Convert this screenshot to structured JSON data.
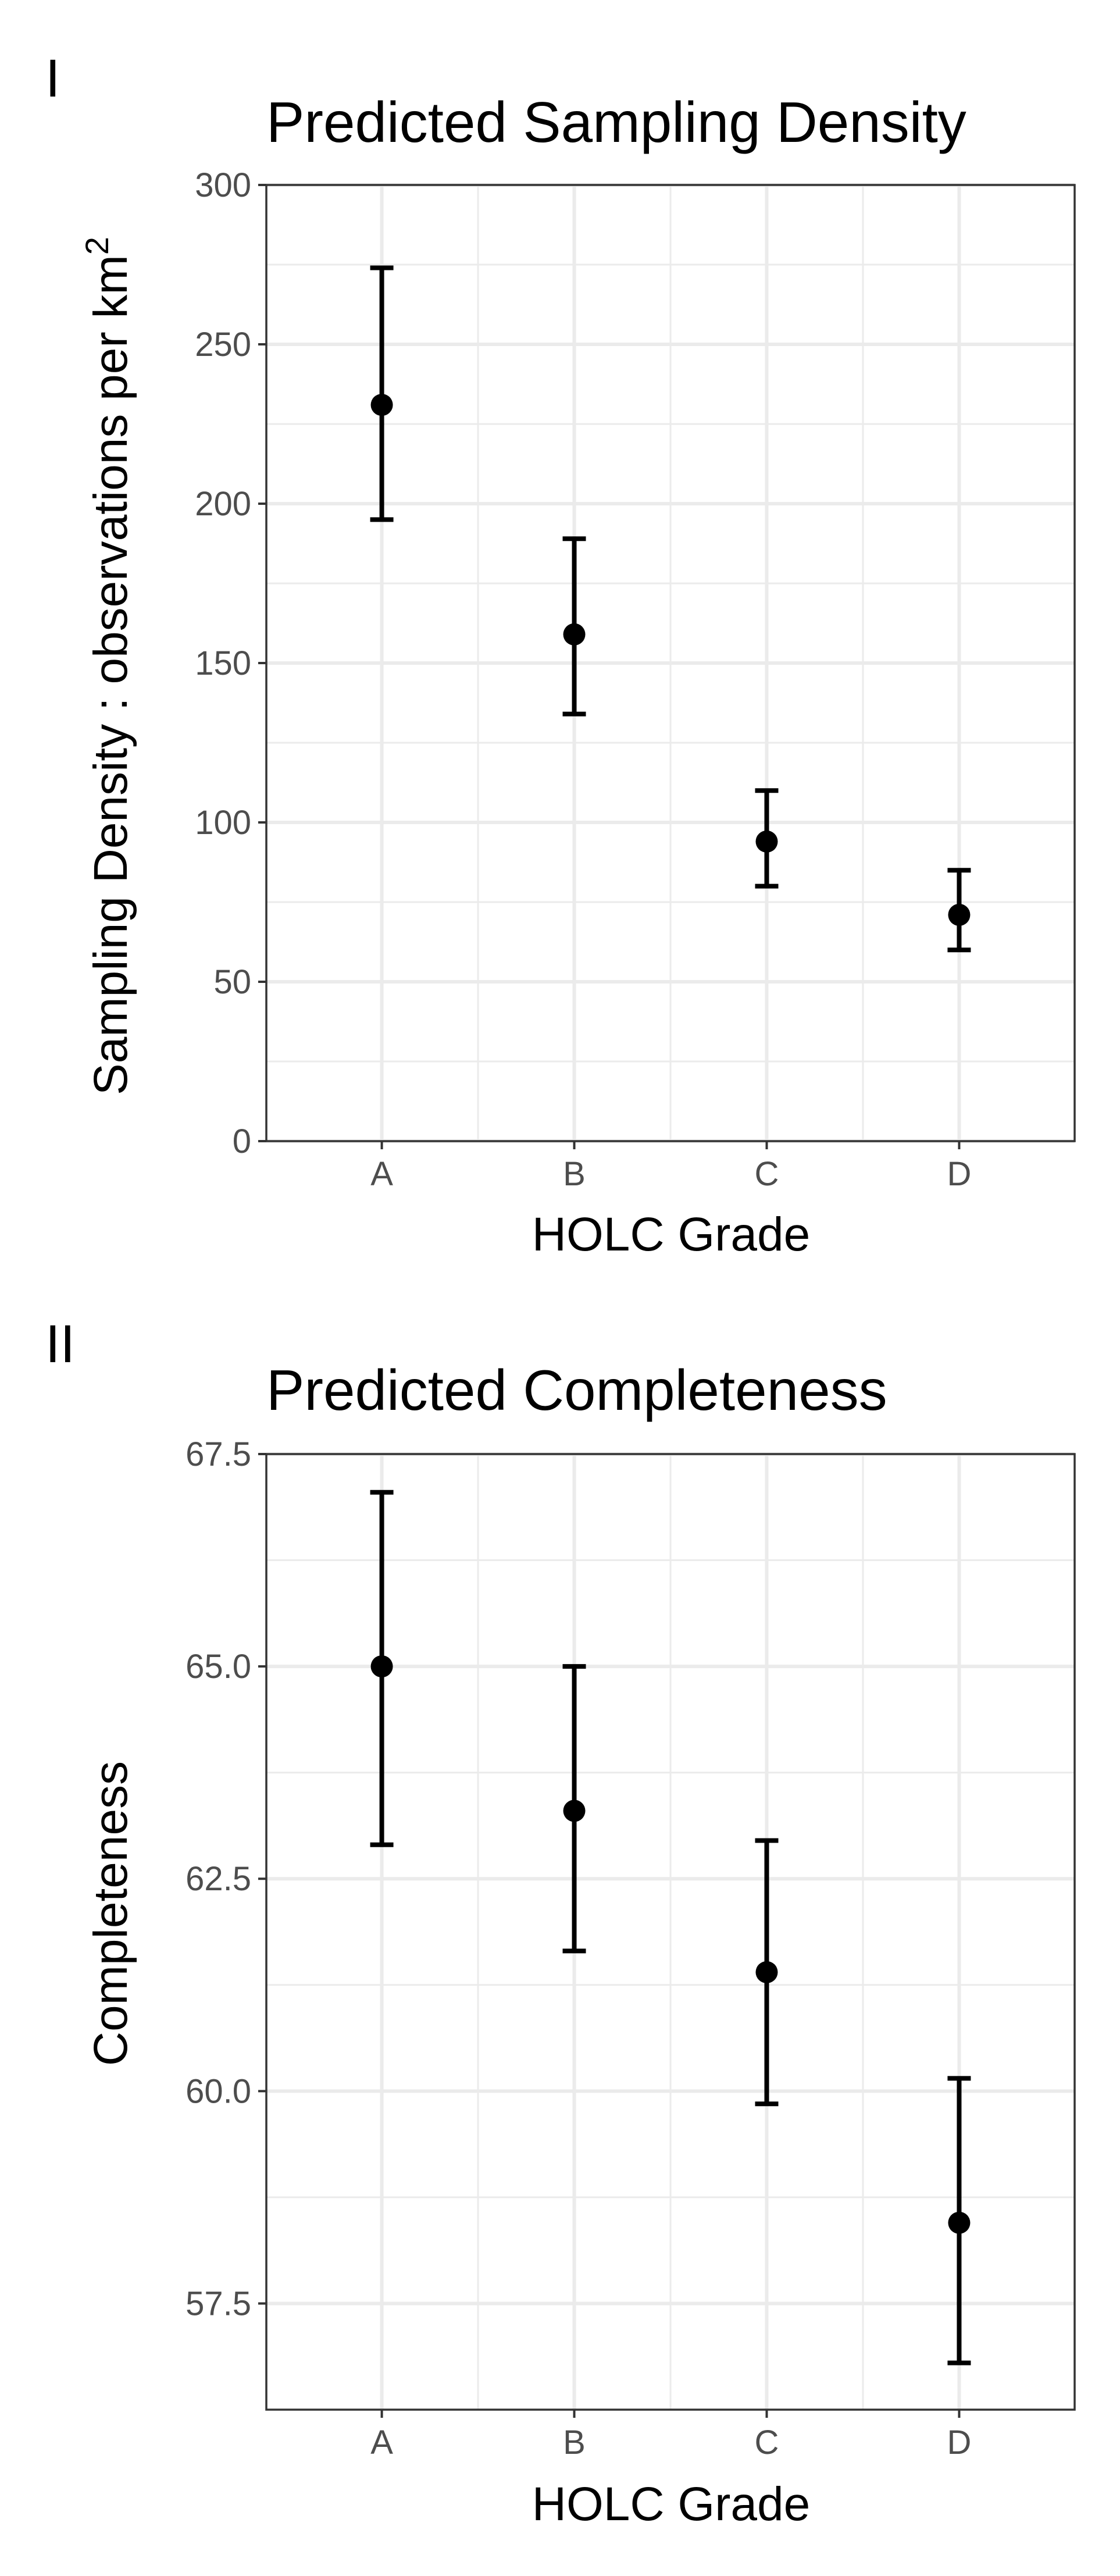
{
  "chart_data": [
    {
      "type": "scatter",
      "panel_tag": "I",
      "title": "Predicted Sampling Density",
      "xlabel": "HOLC Grade",
      "ylabel_main": "Sampling Density :  observations per km",
      "ylabel_superscript": "2",
      "categories": [
        "A",
        "B",
        "C",
        "D"
      ],
      "values": [
        231,
        159,
        94,
        71
      ],
      "lower": [
        195,
        134,
        80,
        60
      ],
      "upper": [
        274,
        189,
        110,
        85
      ],
      "ylim": [
        0,
        300
      ],
      "yticks": [
        0,
        50,
        100,
        150,
        200,
        250,
        300
      ],
      "ytick_labels": [
        "0",
        "50",
        "100",
        "150",
        "200",
        "250",
        "300"
      ],
      "grid": true,
      "legend": "none"
    },
    {
      "type": "scatter",
      "panel_tag": "II",
      "title": "Predicted Completeness",
      "xlabel": "HOLC Grade",
      "ylabel_main": "Completeness",
      "ylabel_superscript": "",
      "categories": [
        "A",
        "B",
        "C",
        "D"
      ],
      "values": [
        65.0,
        63.3,
        61.4,
        58.45
      ],
      "lower": [
        62.9,
        61.65,
        59.85,
        56.8
      ],
      "upper": [
        67.05,
        65.0,
        62.95,
        60.15
      ],
      "ylim": [
        56.25,
        67.5
      ],
      "yticks": [
        57.5,
        60.0,
        62.5,
        65.0,
        67.5
      ],
      "ytick_labels": [
        "57.5",
        "60.0",
        "62.5",
        "65.0",
        "67.5"
      ],
      "grid": true,
      "legend": "none"
    }
  ]
}
